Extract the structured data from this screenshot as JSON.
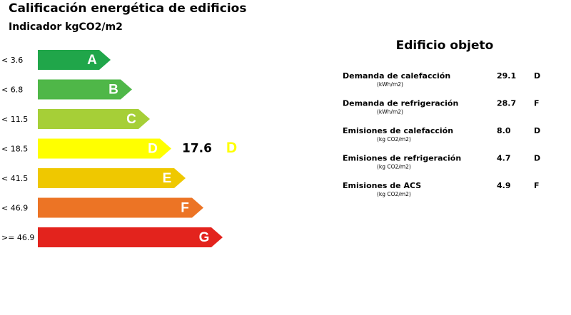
{
  "header": {
    "title": "Calificación energética de edificios",
    "subtitle": "Indicador kgCO2/m2"
  },
  "scale": {
    "bands": [
      {
        "limit": "< 3.6",
        "letter": "A",
        "color": "#20a64a"
      },
      {
        "limit": "< 6.8",
        "letter": "B",
        "color": "#4fb748"
      },
      {
        "limit": "< 11.5",
        "letter": "C",
        "color": "#a6cf37"
      },
      {
        "limit": "< 18.5",
        "letter": "D",
        "color": "#ffff00"
      },
      {
        "limit": "< 41.5",
        "letter": "E",
        "color": "#efc800"
      },
      {
        "limit": "< 46.9",
        "letter": "F",
        "color": "#ec7425"
      },
      {
        "limit": ">= 46.9",
        "letter": "G",
        "color": "#e3231d"
      }
    ]
  },
  "result": {
    "value": "17.6",
    "letter": "D"
  },
  "building": {
    "title": "Edificio objeto",
    "rows": [
      {
        "name": "Demanda de calefacción",
        "unit": "(kWh/m2)",
        "value": "29.1",
        "class": "D"
      },
      {
        "name": "Demanda de refrigeración",
        "unit": "(kWh/m2)",
        "value": "28.7",
        "class": "F"
      },
      {
        "name": "Emisiones de calefacción",
        "unit": "(kg CO2/m2)",
        "value": "8.0",
        "class": "D"
      },
      {
        "name": "Emisiones de refrigeración",
        "unit": "(kg CO2/m2)",
        "value": "4.7",
        "class": "D"
      },
      {
        "name": "Emisiones de ACS",
        "unit": "(kg CO2/m2)",
        "value": "4.9",
        "class": "F"
      }
    ]
  }
}
